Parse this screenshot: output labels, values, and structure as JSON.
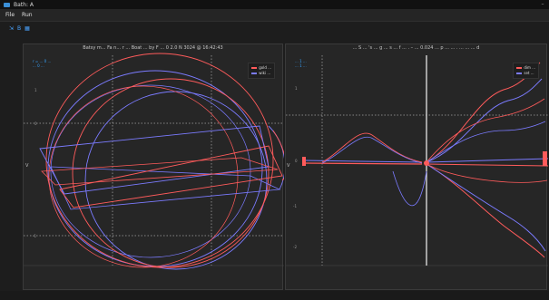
{
  "window": {
    "title": "Bath: A",
    "min": "–"
  },
  "menu": {
    "items": [
      "File",
      "Run"
    ]
  },
  "toolbar": {
    "label": "B"
  },
  "left_panel": {
    "title": "Batsy m... Fa n... r ... Boat ... by F ... 0 2.0 N 3024 @ 16:42:43",
    "info": [
      "r = ... 0 ...",
      "... 0 ..."
    ],
    "ylabel": "V",
    "legend": [
      {
        "label": "gold ...",
        "color": "#ff5b5b"
      },
      {
        "label": "wiki ...",
        "color": "#7b7bff"
      }
    ],
    "yticks": [
      "1",
      "0",
      "-1",
      "-2"
    ],
    "xticks": [
      "",
      "",
      "",
      "",
      ""
    ]
  },
  "right_panel": {
    "title": "... S ... 's ... g ... s ... f ... . – ... 0.024 ... p ... ... . ... ... ... d",
    "info": [
      "... 1 ...",
      "... 1 ..."
    ],
    "ylabel": "V",
    "legend": [
      {
        "label": "dim ...",
        "color": "#ff5b5b"
      },
      {
        "label": "set ...",
        "color": "#7b7bff"
      }
    ],
    "yticks": [
      "1",
      "0",
      "-1",
      "-2"
    ],
    "xticks": [
      "",
      "",
      "",
      "",
      ""
    ]
  },
  "colors": {
    "red": "#ff5b5b",
    "blue": "#7b7bff",
    "accent": "#36a3ff"
  }
}
